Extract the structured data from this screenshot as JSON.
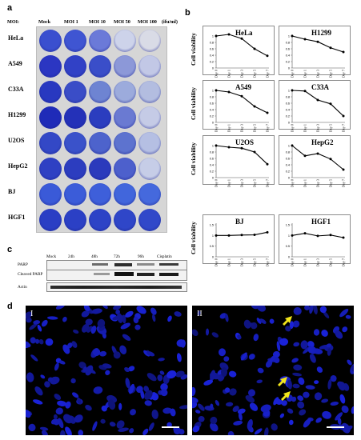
{
  "panels": {
    "a": "a",
    "b": "b",
    "c": "c",
    "d": "d"
  },
  "panel_a": {
    "moi_prefix": "MOI:",
    "columns": [
      "Mock",
      "MOI 1",
      "MOI 10",
      "MOI 50",
      "MOI 100"
    ],
    "unit": "(ifu/ml)",
    "rows": [
      "HeLa",
      "A549",
      "C33A",
      "H1299",
      "U2OS",
      "HepG2",
      "BJ",
      "HGF1"
    ],
    "well_colors": [
      [
        "#3a4fcf",
        "#3f55d2",
        "#6b7ad8",
        "#cdd3ea",
        "#d9dbe6"
      ],
      [
        "#2b36c2",
        "#3141c6",
        "#3a4ec9",
        "#8c98d8",
        "#c2c8e6"
      ],
      [
        "#2838c0",
        "#3a4dc7",
        "#6e84d2",
        "#9cabdc",
        "#b3bde0"
      ],
      [
        "#1f2bb8",
        "#2431b8",
        "#2b3dbf",
        "#6a7ad2",
        "#c5cbe6"
      ],
      [
        "#3348c6",
        "#3a52ca",
        "#4d63cc",
        "#5d73cf",
        "#b5bfe3"
      ],
      [
        "#2e40c3",
        "#2c3dbf",
        "#2b3abc",
        "#4d60cc",
        "#c6cde7"
      ],
      [
        "#3a5ad8",
        "#3b5cd9",
        "#3e5fda",
        "#4166dc",
        "#4569dd"
      ],
      [
        "#2a3ec4",
        "#2b40c5",
        "#2d43c6",
        "#2f46c8",
        "#3148c9"
      ]
    ]
  },
  "chart_data": [
    {
      "type": "line",
      "title": "HeLa",
      "ylabel": "Cell viability",
      "x": [
        "Day 0",
        "Day 1",
        "Day 3",
        "Day 5",
        "Day 7"
      ],
      "ylim": [
        0,
        1
      ],
      "yticks": [
        "0",
        "0.2",
        "0.4",
        "0.6",
        "0.8",
        "1"
      ],
      "values": [
        1.0,
        1.05,
        0.92,
        0.6,
        0.38
      ]
    },
    {
      "type": "line",
      "title": "H1299",
      "ylabel": "",
      "x": [
        "Day 0",
        "Day 1",
        "Day 3",
        "Day 5",
        "Day 7"
      ],
      "ylim": [
        0,
        1
      ],
      "yticks": [
        "0",
        "0.2",
        "0.4",
        "0.6",
        "0.8",
        "1"
      ],
      "values": [
        1.0,
        0.9,
        0.82,
        0.63,
        0.5
      ]
    },
    {
      "type": "line",
      "title": "A549",
      "ylabel": "Cell viability",
      "x": [
        "Day 0",
        "Day 1",
        "Day 3",
        "Day 5",
        "Day 7"
      ],
      "ylim": [
        0,
        1
      ],
      "yticks": [
        "0",
        "0.2",
        "0.4",
        "0.6",
        "0.8",
        "1"
      ],
      "values": [
        1.0,
        0.95,
        0.82,
        0.5,
        0.3
      ]
    },
    {
      "type": "line",
      "title": "C33A",
      "ylabel": "",
      "x": [
        "Day 0",
        "Day 1",
        "Day 3",
        "Day 5",
        "Day 7"
      ],
      "ylim": [
        0,
        1
      ],
      "yticks": [
        "0",
        "0.2",
        "0.4",
        "0.6",
        "0.8",
        "1"
      ],
      "values": [
        1.0,
        0.98,
        0.7,
        0.58,
        0.2
      ]
    },
    {
      "type": "line",
      "title": "U2OS",
      "ylabel": "Cell viability",
      "x": [
        "Day 0",
        "Day 1",
        "Day 3",
        "Day 5",
        "Day 7"
      ],
      "ylim": [
        0,
        1
      ],
      "yticks": [
        "0",
        "0.2",
        "0.4",
        "0.6",
        "0.8",
        "1"
      ],
      "values": [
        1.0,
        0.95,
        0.92,
        0.8,
        0.42
      ]
    },
    {
      "type": "line",
      "title": "HepG2",
      "ylabel": "",
      "x": [
        "Day 0",
        "Day 1",
        "Day 3",
        "Day 5",
        "Day 7"
      ],
      "ylim": [
        0,
        1
      ],
      "yticks": [
        "0",
        "0.2",
        "0.4",
        "0.6",
        "0.8",
        "1"
      ],
      "values": [
        1.0,
        0.68,
        0.75,
        0.58,
        0.25
      ]
    },
    {
      "type": "line",
      "title": "BJ",
      "ylabel": "Cell viability",
      "x": [
        "Day 0",
        "Day 1",
        "Day 3",
        "Day 5",
        "Day 7"
      ],
      "ylim": [
        0,
        1.5
      ],
      "yticks": [
        "0",
        "0.5",
        "1",
        "1.5"
      ],
      "values": [
        1.0,
        1.0,
        1.02,
        1.03,
        1.15
      ]
    },
    {
      "type": "line",
      "title": "HGF1",
      "ylabel": "",
      "x": [
        "Day 0",
        "Day 1",
        "Day 3",
        "Day 5",
        "Day 7"
      ],
      "ylim": [
        0,
        1.5
      ],
      "yticks": [
        "0",
        "0.5",
        "1",
        "1.5"
      ],
      "values": [
        1.0,
        1.1,
        0.98,
        1.02,
        0.9
      ]
    }
  ],
  "panel_c": {
    "columns": [
      "Mock",
      "24h",
      "48h",
      "72h",
      "96h",
      "Cisplatin"
    ],
    "rows": [
      "PARP",
      "Cleaved PARP",
      "Actin"
    ]
  },
  "panel_d": {
    "left": "I",
    "right": "II"
  }
}
